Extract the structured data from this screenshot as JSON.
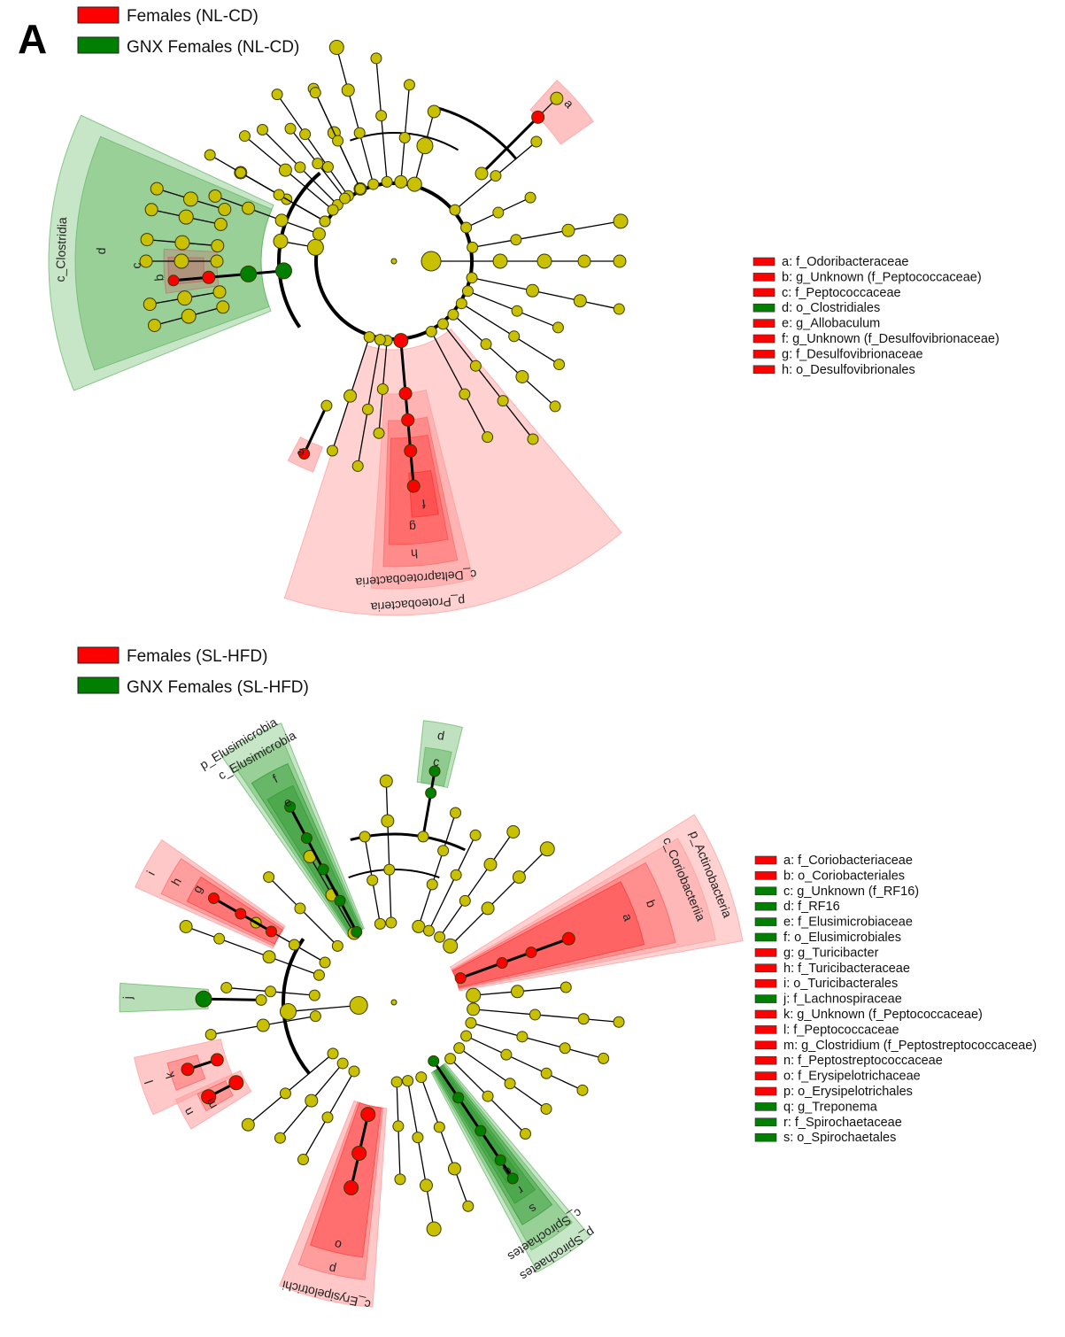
{
  "panel_label": "A",
  "colors": {
    "enriched_red": "#ff0000",
    "enriched_green": "#007f00",
    "neutral_node": "#c8c000",
    "red_shade": "#ff9a9a",
    "green_shade": "#5fb55f"
  },
  "cladograms": [
    {
      "id": "top",
      "class_legend": [
        {
          "label": "Females (NL-CD)",
          "color": "#ff0000"
        },
        {
          "label": "GNX Females (NL-CD)",
          "color": "#007f00"
        }
      ],
      "key": [
        {
          "text": "a: f_Odoribacteraceae",
          "color": "#ff0000"
        },
        {
          "text": "b: g_Unknown (f_Peptococcaceae)",
          "color": "#ff0000"
        },
        {
          "text": "c: f_Peptococcaceae",
          "color": "#ff0000"
        },
        {
          "text": "d: o_Clostridiales",
          "color": "#007f00"
        },
        {
          "text": "e: g_Allobaculum",
          "color": "#ff0000"
        },
        {
          "text": "f: g_Unknown (f_Desulfovibrionaceae)",
          "color": "#ff0000"
        },
        {
          "text": "g: f_Desulfovibrionaceae",
          "color": "#ff0000"
        },
        {
          "text": "h: o_Desulfovibrionales",
          "color": "#ff0000"
        }
      ],
      "clade_labels": [
        "a",
        "b",
        "c",
        "d",
        "c_Clostridia",
        "e",
        "f",
        "g",
        "h",
        "c_Deltaproteobacteria",
        "p_Proteobacteria"
      ]
    },
    {
      "id": "bottom",
      "class_legend": [
        {
          "label": "Females (SL-HFD)",
          "color": "#ff0000"
        },
        {
          "label": "GNX Females (SL-HFD)",
          "color": "#007f00"
        }
      ],
      "key": [
        {
          "text": "a: f_Coriobacteriaceae",
          "color": "#ff0000"
        },
        {
          "text": "b: o_Coriobacteriales",
          "color": "#ff0000"
        },
        {
          "text": "c: g_Unknown (f_RF16)",
          "color": "#007f00"
        },
        {
          "text": "d: f_RF16",
          "color": "#007f00"
        },
        {
          "text": "e: f_Elusimicrobiaceae",
          "color": "#007f00"
        },
        {
          "text": "f: o_Elusimicrobiales",
          "color": "#007f00"
        },
        {
          "text": "g: g_Turicibacter",
          "color": "#ff0000"
        },
        {
          "text": "h: f_Turicibacteraceae",
          "color": "#ff0000"
        },
        {
          "text": "i: o_Turicibacterales",
          "color": "#ff0000"
        },
        {
          "text": "j: f_Lachnospiraceae",
          "color": "#007f00"
        },
        {
          "text": "k: g_Unknown (f_Peptococcaceae)",
          "color": "#ff0000"
        },
        {
          "text": "l: f_Peptococcaceae",
          "color": "#ff0000"
        },
        {
          "text": "m: g_Clostridium (f_Peptostreptococcaceae)",
          "color": "#ff0000"
        },
        {
          "text": "n: f_Peptostreptococcaceae",
          "color": "#ff0000"
        },
        {
          "text": "o: f_Erysipelotrichaceae",
          "color": "#ff0000"
        },
        {
          "text": "p: o_Erysipelotrichales",
          "color": "#ff0000"
        },
        {
          "text": "q: g_Treponema",
          "color": "#007f00"
        },
        {
          "text": "r: f_Spirochaetaceae",
          "color": "#007f00"
        },
        {
          "text": "s: o_Spirochaetales",
          "color": "#007f00"
        }
      ],
      "clade_labels": [
        "p_Actinobacteria",
        "c_Coriobacteriia",
        "b",
        "a",
        "d",
        "c",
        "p_Elusimicrobia",
        "c_Elusimicrobia",
        "f",
        "e",
        "i",
        "h",
        "g",
        "j",
        "k",
        "l",
        "m",
        "n",
        "o",
        "p",
        "c_Erysipelotrichi",
        "q",
        "r",
        "s",
        "c_Spirochaetes",
        "p_Spirochaetes"
      ]
    }
  ]
}
